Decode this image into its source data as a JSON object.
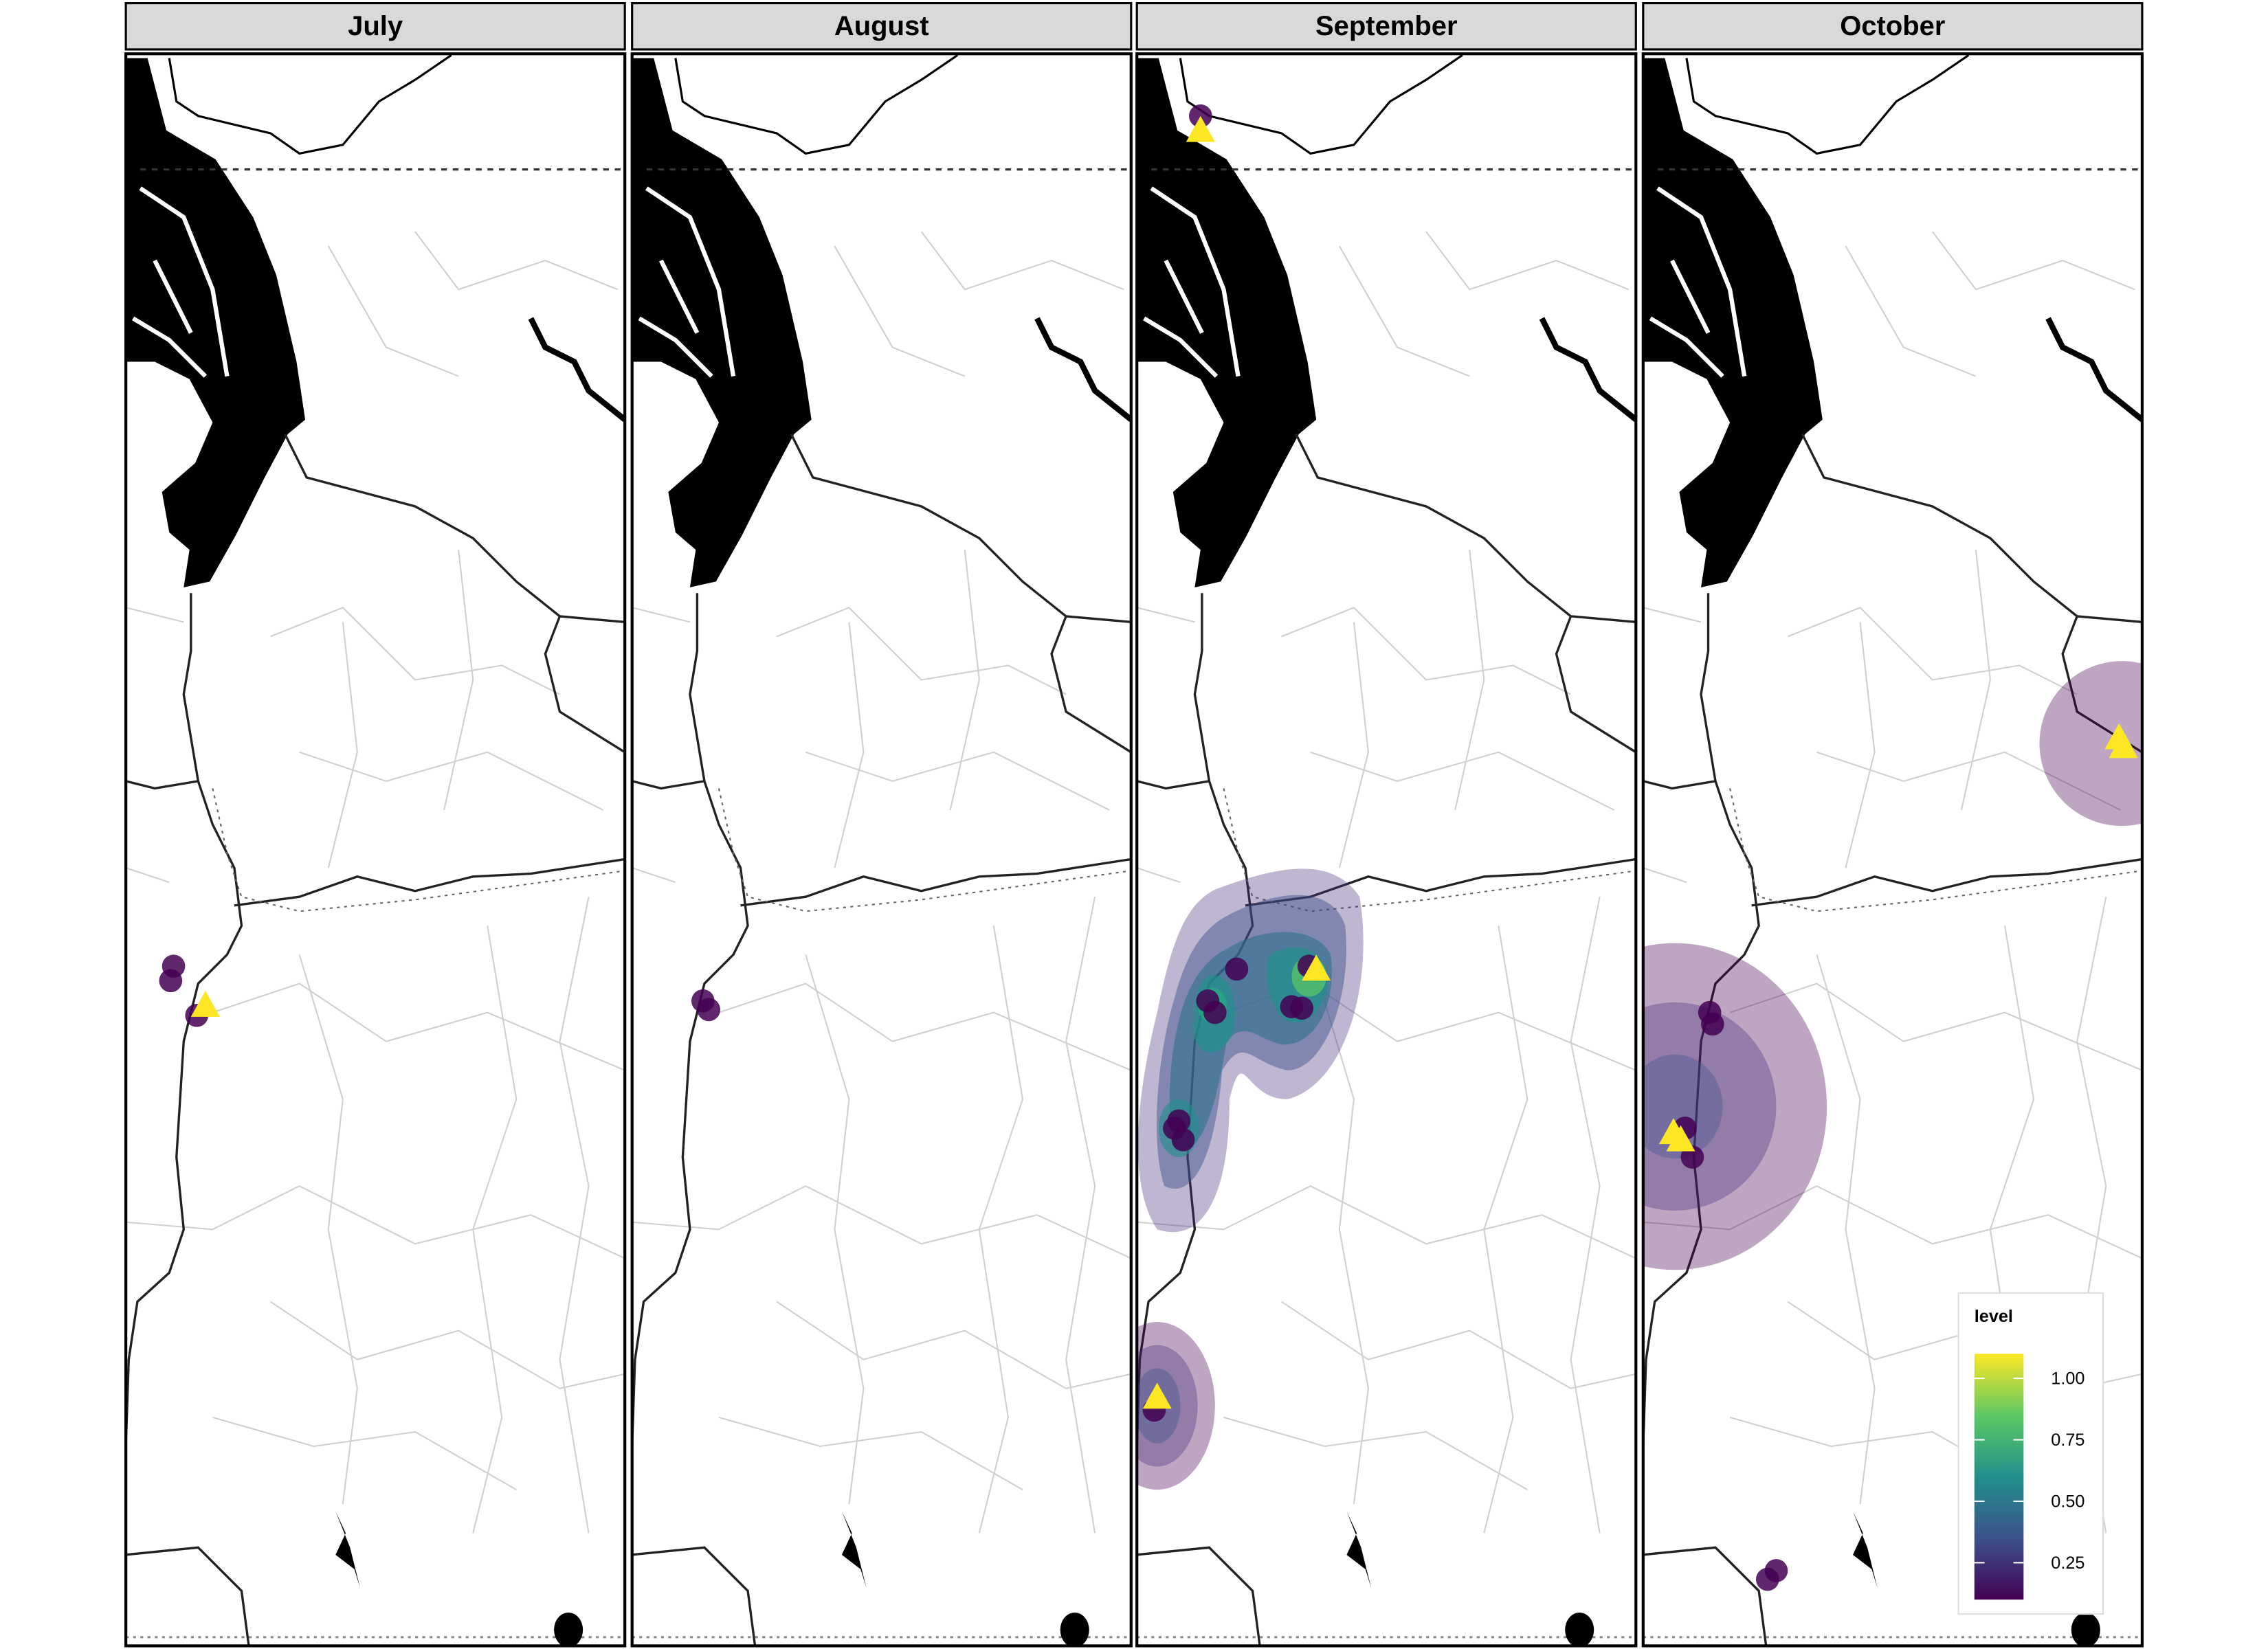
{
  "panels": [
    {
      "title": "July"
    },
    {
      "title": "August"
    },
    {
      "title": "September"
    },
    {
      "title": "October"
    }
  ],
  "legend": {
    "title": "level",
    "limits": [
      0.1,
      1.1
    ],
    "ticks": [
      {
        "value": 0.25,
        "label": "0.25"
      },
      {
        "value": 0.5,
        "label": "0.50"
      },
      {
        "value": 0.75,
        "label": "0.75"
      },
      {
        "value": 1,
        "label": "1.00"
      }
    ]
  }
}
